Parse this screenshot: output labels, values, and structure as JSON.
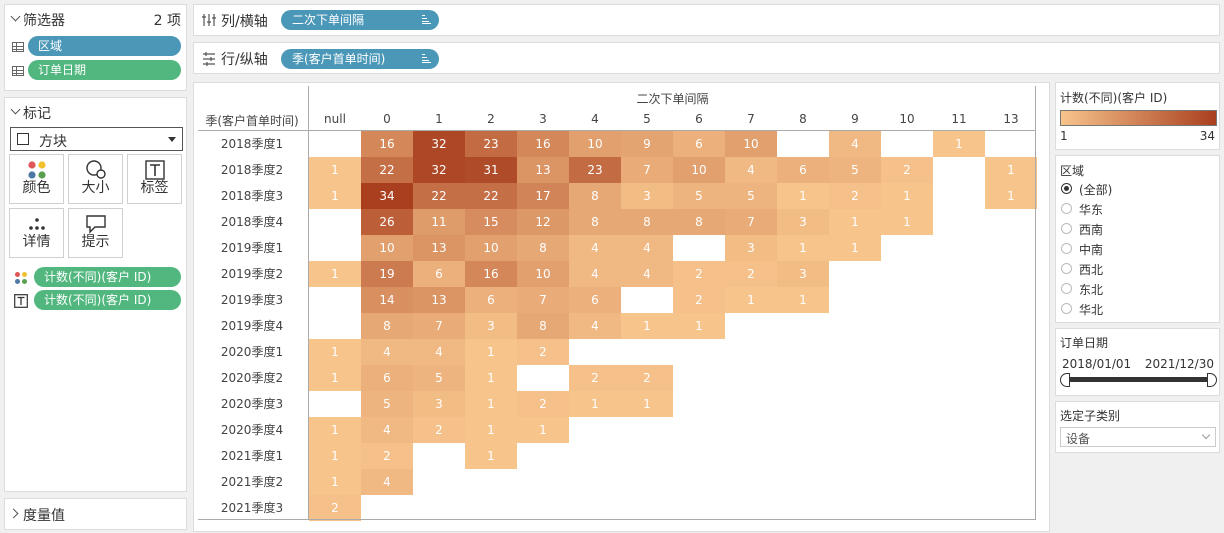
{
  "filters": {
    "title": "筛选器",
    "count": "2 项",
    "items": [
      "区域",
      "订单日期"
    ]
  },
  "marks": {
    "title": "标记",
    "mark_type": "方块",
    "buttons": {
      "color": "颜色",
      "size": "大小",
      "label": "标签",
      "detail": "详情",
      "tooltip": "提示"
    },
    "fields": [
      "计数(不同)(客户 ID)",
      "计数(不同)(客户 ID)"
    ]
  },
  "measure_values": {
    "title": "度量值"
  },
  "columns_shelf": {
    "label": "列/横轴",
    "pill": "二次下单间隔"
  },
  "rows_shelf": {
    "label": "行/纵轴",
    "pill": "季(客户首单时间)"
  },
  "chart_data": {
    "type": "heatmap",
    "title": "二次下单间隔",
    "row_header": "季(客户首单时间)",
    "columns": [
      "null",
      "0",
      "1",
      "2",
      "3",
      "4",
      "5",
      "6",
      "7",
      "8",
      "9",
      "10",
      "11",
      "13"
    ],
    "rows": [
      "2018季度1",
      "2018季度2",
      "2018季度3",
      "2018季度4",
      "2019季度1",
      "2019季度2",
      "2019季度3",
      "2019季度4",
      "2020季度1",
      "2020季度2",
      "2020季度3",
      "2020季度4",
      "2021季度1",
      "2021季度2",
      "2021季度3"
    ],
    "values": [
      [
        null,
        16,
        32,
        23,
        16,
        10,
        9,
        6,
        10,
        null,
        4,
        null,
        1,
        null
      ],
      [
        1,
        22,
        32,
        31,
        13,
        23,
        7,
        10,
        4,
        6,
        5,
        2,
        null,
        1
      ],
      [
        1,
        34,
        22,
        22,
        17,
        8,
        3,
        5,
        5,
        1,
        2,
        1,
        null,
        1
      ],
      [
        null,
        26,
        11,
        15,
        12,
        8,
        8,
        8,
        7,
        3,
        1,
        1,
        null,
        null
      ],
      [
        null,
        10,
        13,
        10,
        8,
        4,
        4,
        null,
        3,
        1,
        1,
        null,
        null,
        null
      ],
      [
        1,
        19,
        6,
        16,
        10,
        4,
        4,
        2,
        2,
        3,
        null,
        null,
        null,
        null
      ],
      [
        null,
        14,
        13,
        6,
        7,
        6,
        null,
        2,
        1,
        1,
        null,
        null,
        null,
        null
      ],
      [
        null,
        8,
        7,
        3,
        8,
        4,
        1,
        1,
        null,
        null,
        null,
        null,
        null,
        null
      ],
      [
        1,
        4,
        4,
        1,
        2,
        null,
        null,
        null,
        null,
        null,
        null,
        null,
        null,
        null
      ],
      [
        1,
        6,
        5,
        1,
        null,
        2,
        2,
        null,
        null,
        null,
        null,
        null,
        null,
        null
      ],
      [
        null,
        5,
        3,
        1,
        2,
        1,
        1,
        null,
        null,
        null,
        null,
        null,
        null,
        null
      ],
      [
        1,
        4,
        2,
        1,
        1,
        null,
        null,
        null,
        null,
        null,
        null,
        null,
        null,
        null
      ],
      [
        1,
        2,
        null,
        1,
        null,
        null,
        null,
        null,
        null,
        null,
        null,
        null,
        null,
        null
      ],
      [
        1,
        4,
        null,
        null,
        null,
        null,
        null,
        null,
        null,
        null,
        null,
        null,
        null,
        null
      ],
      [
        2,
        null,
        null,
        null,
        null,
        null,
        null,
        null,
        null,
        null,
        null,
        null,
        null,
        null
      ]
    ],
    "color_range": [
      1,
      34
    ],
    "color_low": "#f7c48c",
    "color_high": "#a93f1f"
  },
  "legend": {
    "title": "计数(不同)(客户 ID)",
    "min": "1",
    "max": "34"
  },
  "region_filter": {
    "title": "区域",
    "options": [
      "(全部)",
      "华东",
      "西南",
      "中南",
      "西北",
      "东北",
      "华北"
    ],
    "selected": 0
  },
  "date_filter": {
    "title": "订单日期",
    "start": "2018/01/01",
    "end": "2021/12/30"
  },
  "subcategory_filter": {
    "title": "选定子类别",
    "value": "设备"
  },
  "colors": {
    "blue_pill": "#4a97b8",
    "green_pill": "#52b77f"
  }
}
